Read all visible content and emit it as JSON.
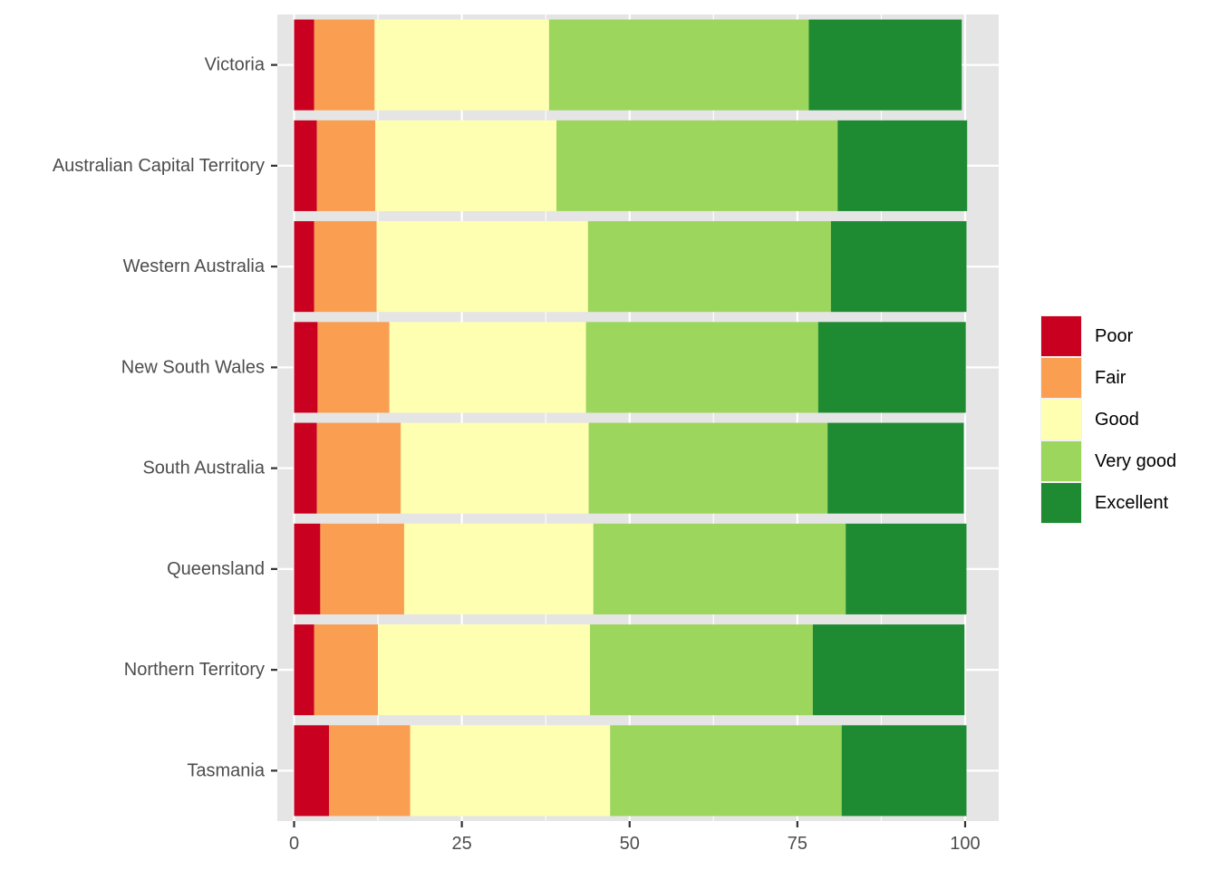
{
  "chart_data": {
    "type": "bar",
    "orientation": "horizontal",
    "stacked": true,
    "categories": [
      "Victoria",
      "Australian Capital Territory",
      "Western Australia",
      "New South Wales",
      "South Australia",
      "Queensland",
      "Northern Territory",
      "Tasmania"
    ],
    "series": [
      {
        "name": "Poor",
        "color": "#ca0020",
        "values": [
          3.0,
          3.4,
          3.0,
          3.5,
          3.4,
          3.9,
          3.0,
          5.2
        ]
      },
      {
        "name": "Fair",
        "color": "#fa9e51",
        "values": [
          9.0,
          8.7,
          9.3,
          10.7,
          12.5,
          12.5,
          9.5,
          12.1
        ]
      },
      {
        "name": "Good",
        "color": "#ffffb2",
        "values": [
          26.0,
          27.0,
          31.5,
          29.3,
          28.0,
          28.2,
          31.6,
          29.8
        ]
      },
      {
        "name": "Very good",
        "color": "#9cd65c",
        "values": [
          38.7,
          41.9,
          36.2,
          34.6,
          35.6,
          37.6,
          33.2,
          34.5
        ]
      },
      {
        "name": "Excellent",
        "color": "#1e8b33",
        "values": [
          22.8,
          19.3,
          20.2,
          22.0,
          20.3,
          18.0,
          22.6,
          18.6
        ]
      }
    ],
    "xaxis": {
      "ticks": [
        0,
        25,
        50,
        75,
        100
      ],
      "tick_labels": [
        "0",
        "25",
        "50",
        "75",
        "100"
      ],
      "range": [
        -2.5,
        105
      ]
    },
    "title": "",
    "xlabel": "",
    "ylabel": "",
    "grid": true,
    "legend": {
      "placement": "right",
      "title": ""
    },
    "colors": {
      "panel_background": "#e5e5e5",
      "grid": "#ffffff",
      "axis_text": "#4d4d4d"
    }
  }
}
